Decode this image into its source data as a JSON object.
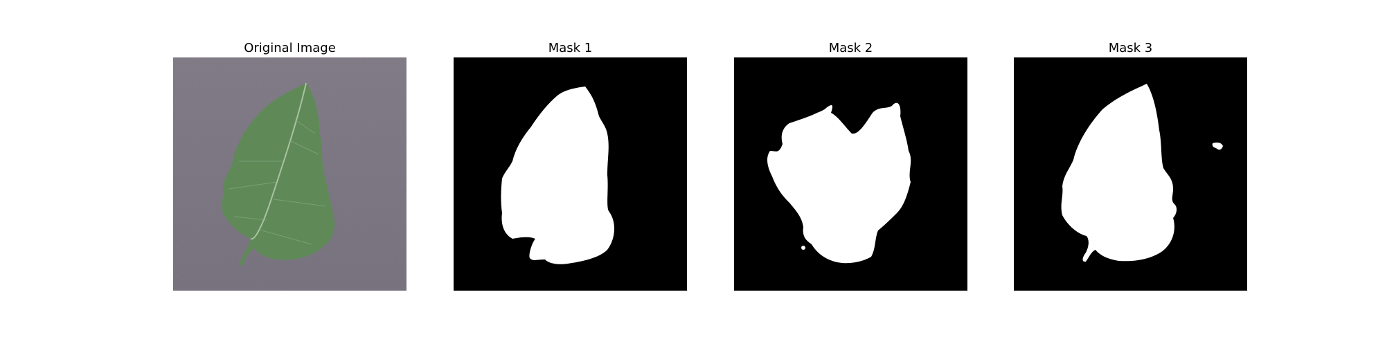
{
  "figure": {
    "panels": [
      {
        "title": "Original Image",
        "kind": "photo"
      },
      {
        "title": "Mask 1",
        "kind": "mask"
      },
      {
        "title": "Mask 2",
        "kind": "mask"
      },
      {
        "title": "Mask 3",
        "kind": "mask"
      }
    ]
  },
  "colors": {
    "background": "#ffffff",
    "mask_background": "#000000",
    "mask_foreground": "#ffffff",
    "photo_background": "#6f6a74",
    "leaf": "#5f8a58",
    "leaf_vein": "#a9c3a0"
  }
}
